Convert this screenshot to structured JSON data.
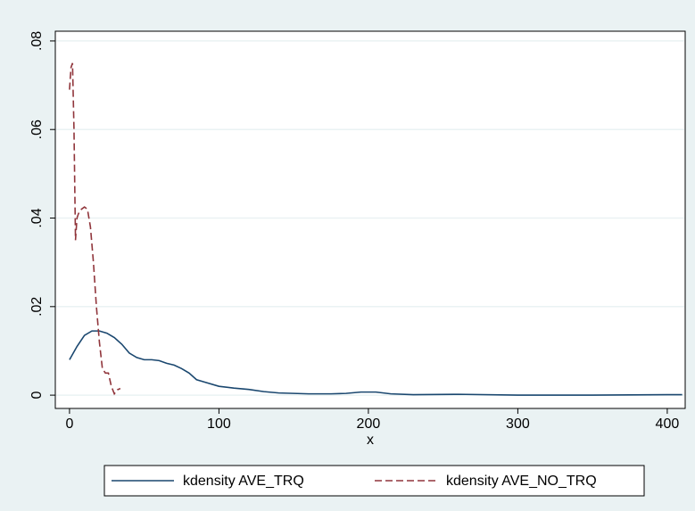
{
  "chart_data": {
    "type": "line",
    "x_label": "x",
    "xlim": [
      -9.5,
      412
    ],
    "xticks": [
      0,
      100,
      200,
      300,
      400
    ],
    "ylim": [
      -0.003,
      0.0822
    ],
    "yticks": [
      0,
      {
        "value": 0.02,
        "label": ".02"
      },
      {
        "value": 0.04,
        "label": ".04"
      },
      {
        "value": 0.06,
        "label": ".06"
      },
      {
        "value": 0.08,
        "label": ".08"
      }
    ],
    "grid": true,
    "legend": "bottom",
    "series": [
      {
        "name": "kdensity AVE_TRQ",
        "color": "#1a476f",
        "line_style": "solid",
        "x": [
          0,
          5,
          10,
          15,
          20,
          25,
          30,
          35,
          40,
          45,
          50,
          55,
          60,
          65,
          70,
          75,
          80,
          85,
          90,
          100,
          110,
          120,
          130,
          140,
          150,
          160,
          175,
          185,
          195,
          205,
          215,
          230,
          260,
          300,
          350,
          400,
          410
        ],
        "values": [
          0.008,
          0.011,
          0.0135,
          0.0145,
          0.0145,
          0.014,
          0.013,
          0.0115,
          0.0095,
          0.0085,
          0.008,
          0.008,
          0.0078,
          0.0072,
          0.0068,
          0.006,
          0.005,
          0.0035,
          0.003,
          0.002,
          0.0016,
          0.0013,
          0.0008,
          0.0005,
          0.0004,
          0.0003,
          0.0003,
          0.0004,
          0.0007,
          0.0007,
          0.0003,
          0.0001,
          0.0002,
          0,
          0,
          0.0001,
          0.0001
        ]
      },
      {
        "name": "kdensity AVE_NO_TRQ",
        "color": "#90353b",
        "line_style": "dashed",
        "x": [
          0,
          1,
          2,
          3,
          4,
          5,
          6,
          8,
          10,
          12,
          14,
          16,
          18,
          20,
          22,
          24,
          26,
          28,
          30,
          32,
          34
        ],
        "values": [
          0.069,
          0.074,
          0.075,
          0.06,
          0.035,
          0.04,
          0.041,
          0.042,
          0.0425,
          0.042,
          0.038,
          0.03,
          0.02,
          0.012,
          0.006,
          0.005,
          0.005,
          0.002,
          0.0003,
          0.0012,
          0.0015
        ]
      }
    ]
  }
}
